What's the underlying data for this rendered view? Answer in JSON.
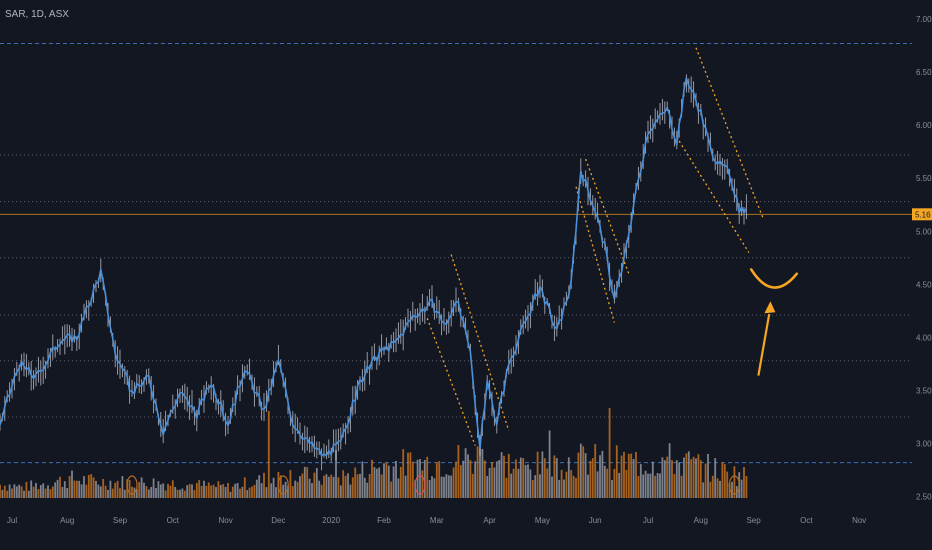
{
  "ticker_label": "SAR, 1D, ASX",
  "colors": {
    "background": "#131722",
    "line": "#4a90d9",
    "candle": "#c9ccd6",
    "volume_orange": "#b86a1e",
    "volume_grey": "#8a8e99",
    "level_dashed": "#3d6fb5",
    "level_dotted": "#5d6270",
    "annotation": "#f5a623",
    "price_badge": "#f5a623",
    "axis_text": "#8a8e99"
  },
  "chart_data": {
    "type": "line",
    "y_ticks": [
      "7.00",
      "6.50",
      "6.00",
      "5.50",
      "5.00",
      "4.50",
      "4.00",
      "3.50",
      "3.00",
      "2.50"
    ],
    "y_tick_values": [
      7.0,
      6.5,
      6.0,
      5.5,
      5.0,
      4.5,
      4.0,
      3.5,
      3.0,
      2.5
    ],
    "ylim": [
      2.42,
      7.18
    ],
    "x_ticks": [
      "Jul",
      "Aug",
      "Sep",
      "Oct",
      "Nov",
      "Dec",
      "2020",
      "Feb",
      "Mar",
      "Apr",
      "May",
      "Jun",
      "Jul",
      "Aug",
      "Sep",
      "Oct",
      "Nov"
    ],
    "x_tick_index": [
      5,
      28,
      50,
      72,
      94,
      116,
      138,
      160,
      182,
      204,
      226,
      248,
      270,
      292,
      314,
      336,
      358
    ],
    "xlim": [
      0,
      380
    ],
    "last_price": "5.16",
    "last_price_value": 5.16,
    "levels_dashed": [
      6.77,
      2.82
    ],
    "levels_dotted": [
      5.72,
      5.28,
      4.75,
      4.21,
      3.78,
      3.25
    ],
    "price_keypoints": [
      [
        0,
        3.18
      ],
      [
        8,
        3.75
      ],
      [
        15,
        3.62
      ],
      [
        25,
        3.98
      ],
      [
        32,
        4.0
      ],
      [
        42,
        4.62
      ],
      [
        48,
        3.85
      ],
      [
        55,
        3.48
      ],
      [
        62,
        3.62
      ],
      [
        68,
        3.12
      ],
      [
        75,
        3.48
      ],
      [
        82,
        3.28
      ],
      [
        88,
        3.58
      ],
      [
        95,
        3.18
      ],
      [
        102,
        3.72
      ],
      [
        110,
        3.3
      ],
      [
        116,
        3.78
      ],
      [
        122,
        3.2
      ],
      [
        128,
        3.02
      ],
      [
        135,
        2.88
      ],
      [
        142,
        3.0
      ],
      [
        150,
        3.58
      ],
      [
        158,
        3.85
      ],
      [
        165,
        3.95
      ],
      [
        172,
        4.2
      ],
      [
        180,
        4.32
      ],
      [
        186,
        4.1
      ],
      [
        190,
        4.38
      ],
      [
        196,
        3.85
      ],
      [
        200,
        2.95
      ],
      [
        203,
        3.58
      ],
      [
        207,
        3.2
      ],
      [
        212,
        3.75
      ],
      [
        218,
        4.1
      ],
      [
        225,
        4.48
      ],
      [
        232,
        4.05
      ],
      [
        238,
        4.5
      ],
      [
        242,
        5.58
      ],
      [
        248,
        5.2
      ],
      [
        252,
        4.85
      ],
      [
        256,
        4.35
      ],
      [
        260,
        4.72
      ],
      [
        264,
        5.25
      ],
      [
        270,
        5.95
      ],
      [
        278,
        6.15
      ],
      [
        282,
        5.85
      ],
      [
        286,
        6.45
      ],
      [
        292,
        6.12
      ],
      [
        296,
        5.78
      ],
      [
        300,
        5.62
      ],
      [
        304,
        5.55
      ],
      [
        308,
        5.22
      ],
      [
        311,
        5.18
      ]
    ],
    "volume_keypoints": [
      [
        0,
        10
      ],
      [
        10,
        8
      ],
      [
        30,
        14
      ],
      [
        40,
        12
      ],
      [
        70,
        11
      ],
      [
        95,
        8
      ],
      [
        120,
        17
      ],
      [
        140,
        14
      ],
      [
        160,
        24
      ],
      [
        180,
        26
      ],
      [
        200,
        30
      ],
      [
        220,
        22
      ],
      [
        240,
        28
      ],
      [
        260,
        26
      ],
      [
        280,
        28
      ],
      [
        300,
        20
      ],
      [
        311,
        16
      ]
    ],
    "volume_spikes": [
      [
        254,
        60
      ],
      [
        229,
        45
      ],
      [
        200,
        42
      ],
      [
        112,
        58
      ],
      [
        140,
        32
      ]
    ],
    "volume_marker_index": [
      55,
      118,
      175,
      306
    ],
    "trendlines": [
      {
        "from": [
          188,
          4.78
        ],
        "to": [
          212,
          3.12
        ]
      },
      {
        "from": [
          178,
          4.18
        ],
        "to": [
          198,
          2.98
        ]
      },
      {
        "from": [
          244,
          5.68
        ],
        "to": [
          262,
          4.6
        ]
      },
      {
        "from": [
          240,
          5.42
        ],
        "to": [
          256,
          4.14
        ]
      },
      {
        "from": [
          290,
          6.73
        ],
        "to": [
          318,
          5.12
        ]
      },
      {
        "from": [
          283,
          5.85
        ],
        "to": [
          312,
          4.8
        ]
      }
    ]
  }
}
